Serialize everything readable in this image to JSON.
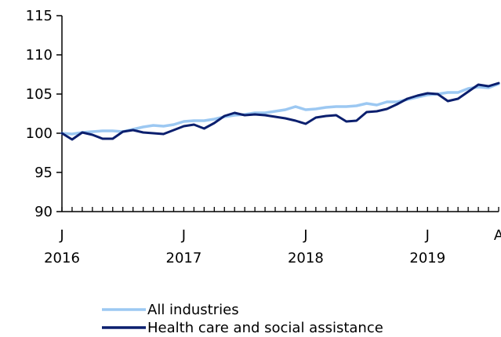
{
  "chart_data": {
    "type": "line",
    "title": "",
    "xlabel": "",
    "ylabel": "",
    "ylim": [
      90,
      115
    ],
    "yticks": [
      90,
      95,
      100,
      105,
      110,
      115
    ],
    "x_start": "2016-01",
    "x_end": "2019-08",
    "x": [
      "2016-01",
      "2016-02",
      "2016-03",
      "2016-04",
      "2016-05",
      "2016-06",
      "2016-07",
      "2016-08",
      "2016-09",
      "2016-10",
      "2016-11",
      "2016-12",
      "2017-01",
      "2017-02",
      "2017-03",
      "2017-04",
      "2017-05",
      "2017-06",
      "2017-07",
      "2017-08",
      "2017-09",
      "2017-10",
      "2017-11",
      "2017-12",
      "2018-01",
      "2018-02",
      "2018-03",
      "2018-04",
      "2018-05",
      "2018-06",
      "2018-07",
      "2018-08",
      "2018-09",
      "2018-10",
      "2018-11",
      "2018-12",
      "2019-01",
      "2019-02",
      "2019-03",
      "2019-04",
      "2019-05",
      "2019-06",
      "2019-07",
      "2019-08"
    ],
    "xtick_labels": [
      {
        "x": "2016-01",
        "month": "J",
        "year": "2016"
      },
      {
        "x": "2017-01",
        "month": "J",
        "year": "2017"
      },
      {
        "x": "2018-01",
        "month": "J",
        "year": "2018"
      },
      {
        "x": "2019-01",
        "month": "J",
        "year": "2019"
      },
      {
        "x": "2019-08",
        "month": "A",
        "year": ""
      }
    ],
    "grid": false,
    "legend_position": "bottom",
    "series": [
      {
        "name": "All industries",
        "color": "#9cc8f2",
        "values": [
          100.0,
          99.9,
          100.1,
          100.2,
          100.3,
          100.3,
          100.2,
          100.5,
          100.8,
          101.0,
          100.9,
          101.1,
          101.5,
          101.6,
          101.6,
          101.8,
          102.1,
          102.3,
          102.4,
          102.6,
          102.6,
          102.8,
          103.0,
          103.4,
          103.0,
          103.1,
          103.3,
          103.4,
          103.4,
          103.5,
          103.8,
          103.6,
          104.0,
          104.0,
          104.3,
          104.6,
          104.9,
          105.0,
          105.2,
          105.2,
          105.7,
          105.9,
          105.8,
          106.3
        ]
      },
      {
        "name": "Health care and social assistance",
        "color": "#0b1f6e",
        "values": [
          100.0,
          99.2,
          100.1,
          99.8,
          99.3,
          99.3,
          100.2,
          100.4,
          100.1,
          100.0,
          99.9,
          100.4,
          100.9,
          101.1,
          100.6,
          101.3,
          102.2,
          102.6,
          102.3,
          102.4,
          102.3,
          102.1,
          101.9,
          101.6,
          101.2,
          102.0,
          102.2,
          102.3,
          101.5,
          101.6,
          102.7,
          102.8,
          103.1,
          103.7,
          104.4,
          104.8,
          105.1,
          105.0,
          104.1,
          104.4,
          105.3,
          106.2,
          106.0,
          106.4
        ]
      }
    ]
  }
}
